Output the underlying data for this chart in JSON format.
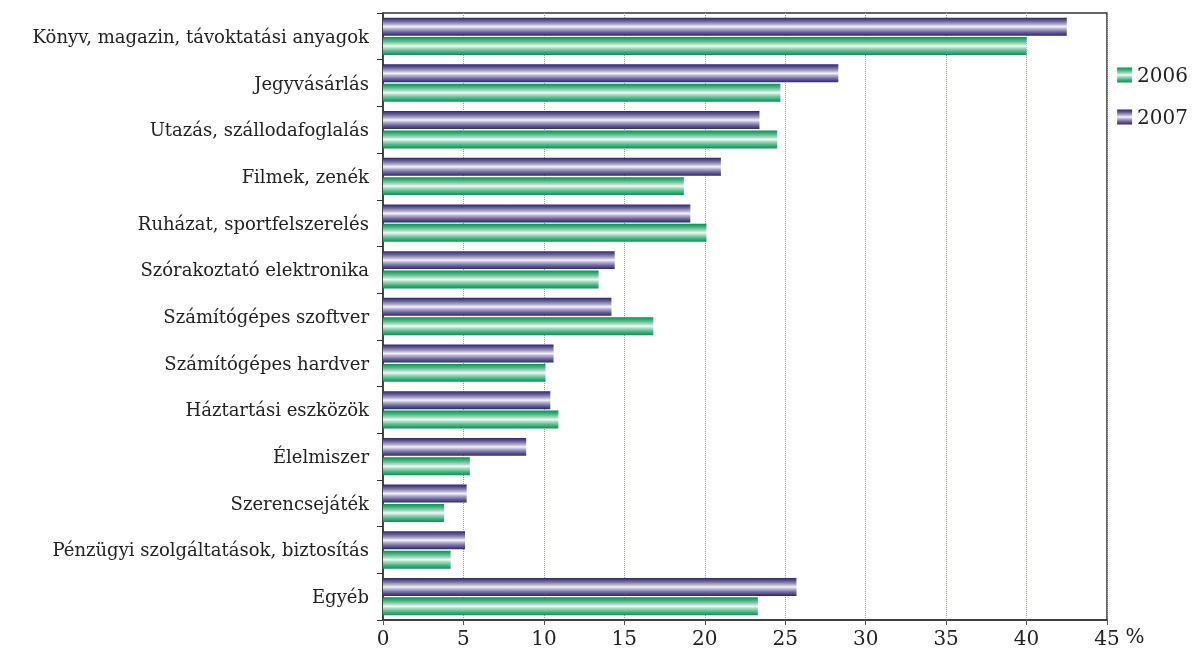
{
  "chart_data": {
    "type": "bar",
    "orientation": "horizontal",
    "xlabel": "%",
    "categories": [
      "Könyv, magazin, távoktatási anyagok",
      "Jegyvásárlás",
      "Utazás, szállodafoglalás",
      "Filmek, zenék",
      "Ruházat, sportfelszerelés",
      "Szórakoztató elektronika",
      "Számítógépes szoftver",
      "Számítógépes hardver",
      "Háztartási eszközök",
      "Élelmiszer",
      "Szerencsejáték",
      "Pénzügyi szolgáltatások, biztosítás",
      "Egyéb"
    ],
    "series": [
      {
        "name": "2006",
        "color": "#00954f",
        "values": [
          40.0,
          24.7,
          24.5,
          18.7,
          20.1,
          13.4,
          16.8,
          10.1,
          10.9,
          5.4,
          3.8,
          4.2,
          23.3
        ]
      },
      {
        "name": "2007",
        "color": "#2e2472",
        "values": [
          42.5,
          28.3,
          23.4,
          21.0,
          19.1,
          14.4,
          14.2,
          10.6,
          10.4,
          8.9,
          5.2,
          5.1,
          25.7
        ]
      }
    ],
    "xlim": [
      0,
      45
    ],
    "xticks": [
      0,
      5,
      10,
      15,
      20,
      25,
      30,
      35,
      40,
      45
    ],
    "grid": "x",
    "legend": "right"
  }
}
